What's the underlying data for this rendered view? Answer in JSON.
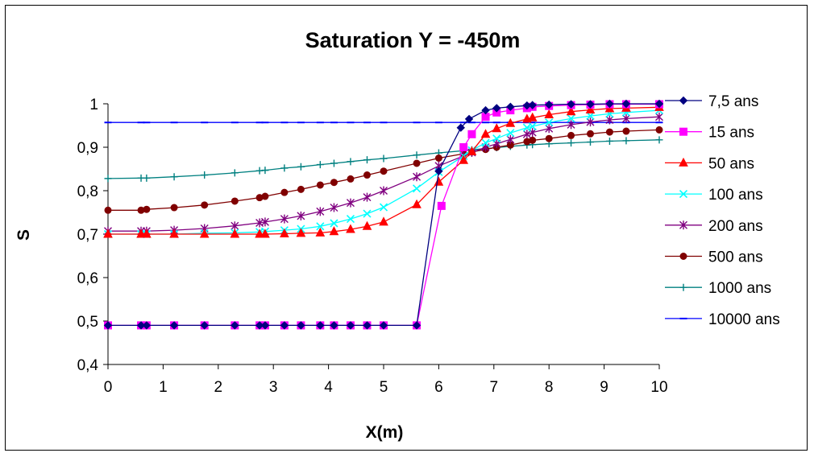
{
  "chart_data": {
    "type": "line",
    "title": "Saturation Y = -450m",
    "xlabel": "X(m)",
    "ylabel": "S",
    "xlim": [
      0,
      10
    ],
    "ylim": [
      0.4,
      1.0
    ],
    "x_ticks": [
      "0",
      "1",
      "2",
      "3",
      "4",
      "5",
      "6",
      "7",
      "8",
      "9",
      "10"
    ],
    "y_ticks": [
      "0,4",
      "0,5",
      "0,6",
      "0,7",
      "0,8",
      "0,9",
      "1"
    ],
    "grid": false,
    "legend_position": "right",
    "series": [
      {
        "name": "7,5 ans",
        "color": "#000080",
        "marker": "diamond",
        "x": [
          0,
          0.6,
          0.7,
          1.2,
          1.75,
          2.3,
          2.75,
          2.85,
          3.2,
          3.5,
          3.85,
          4.1,
          4.4,
          4.7,
          5.0,
          5.6,
          6.0,
          6.4,
          6.55,
          6.85,
          7.05,
          7.3,
          7.6,
          7.7,
          8.0,
          8.4,
          8.75,
          9.1,
          9.4,
          10.0
        ],
        "y": [
          0.49,
          0.49,
          0.49,
          0.49,
          0.49,
          0.49,
          0.49,
          0.49,
          0.49,
          0.49,
          0.49,
          0.49,
          0.49,
          0.49,
          0.49,
          0.49,
          0.845,
          0.945,
          0.965,
          0.985,
          0.99,
          0.993,
          0.996,
          0.997,
          0.998,
          0.999,
          0.999,
          1.0,
          1.0,
          1.0
        ]
      },
      {
        "name": "15 ans",
        "color": "#FF00FF",
        "marker": "square",
        "x": [
          0,
          0.6,
          0.7,
          1.2,
          1.75,
          2.3,
          2.75,
          2.85,
          3.2,
          3.5,
          3.85,
          4.1,
          4.4,
          4.7,
          5.0,
          5.6,
          6.05,
          6.45,
          6.6,
          6.85,
          7.05,
          7.3,
          7.6,
          7.7,
          8.0,
          8.4,
          8.75,
          9.1,
          9.4,
          10.0
        ],
        "y": [
          0.49,
          0.49,
          0.49,
          0.49,
          0.49,
          0.49,
          0.49,
          0.49,
          0.49,
          0.49,
          0.49,
          0.49,
          0.49,
          0.49,
          0.49,
          0.49,
          0.765,
          0.9,
          0.93,
          0.97,
          0.98,
          0.985,
          0.99,
          0.993,
          0.995,
          0.997,
          0.998,
          0.999,
          0.999,
          0.999
        ]
      },
      {
        "name": "50 ans",
        "color": "#FF0000",
        "marker": "triangle",
        "x": [
          0,
          0.6,
          0.7,
          1.2,
          1.75,
          2.3,
          2.75,
          2.85,
          3.2,
          3.5,
          3.85,
          4.1,
          4.4,
          4.7,
          5.0,
          5.6,
          6.0,
          6.45,
          6.6,
          6.85,
          7.05,
          7.3,
          7.6,
          7.7,
          8.0,
          8.4,
          8.75,
          9.1,
          9.4,
          10.0
        ],
        "y": [
          0.7,
          0.7,
          0.7,
          0.7,
          0.7,
          0.7,
          0.7,
          0.7,
          0.701,
          0.702,
          0.703,
          0.706,
          0.711,
          0.718,
          0.728,
          0.768,
          0.82,
          0.87,
          0.89,
          0.93,
          0.943,
          0.955,
          0.965,
          0.968,
          0.975,
          0.982,
          0.986,
          0.989,
          0.99,
          0.992
        ]
      },
      {
        "name": "100 ans",
        "color": "#00FFFF",
        "marker": "x",
        "x": [
          0,
          0.6,
          0.7,
          1.2,
          1.75,
          2.3,
          2.75,
          2.85,
          3.2,
          3.5,
          3.85,
          4.1,
          4.4,
          4.7,
          5.0,
          5.6,
          6.0,
          6.45,
          6.6,
          6.85,
          7.05,
          7.3,
          7.6,
          7.7,
          8.0,
          8.4,
          8.75,
          9.1,
          9.4,
          10.0
        ],
        "y": [
          0.7,
          0.7,
          0.7,
          0.7,
          0.702,
          0.703,
          0.705,
          0.706,
          0.709,
          0.712,
          0.718,
          0.725,
          0.735,
          0.747,
          0.762,
          0.805,
          0.843,
          0.88,
          0.893,
          0.91,
          0.92,
          0.933,
          0.945,
          0.948,
          0.957,
          0.966,
          0.972,
          0.977,
          0.98,
          0.985
        ]
      },
      {
        "name": "200 ans",
        "color": "#800080",
        "marker": "star",
        "x": [
          0,
          0.6,
          0.7,
          1.2,
          1.75,
          2.3,
          2.75,
          2.85,
          3.2,
          3.5,
          3.85,
          4.1,
          4.4,
          4.7,
          5.0,
          5.6,
          6.0,
          6.45,
          6.6,
          6.85,
          7.05,
          7.3,
          7.6,
          7.7,
          8.0,
          8.4,
          8.75,
          9.1,
          9.4,
          10.0
        ],
        "y": [
          0.707,
          0.707,
          0.707,
          0.709,
          0.713,
          0.719,
          0.726,
          0.728,
          0.735,
          0.742,
          0.752,
          0.761,
          0.772,
          0.785,
          0.8,
          0.832,
          0.857,
          0.88,
          0.888,
          0.9,
          0.908,
          0.918,
          0.93,
          0.934,
          0.943,
          0.952,
          0.958,
          0.963,
          0.966,
          0.97
        ]
      },
      {
        "name": "500 ans",
        "color": "#800000",
        "marker": "circle",
        "x": [
          0,
          0.6,
          0.7,
          1.2,
          1.75,
          2.3,
          2.75,
          2.85,
          3.2,
          3.5,
          3.85,
          4.1,
          4.4,
          4.7,
          5.0,
          5.6,
          6.0,
          6.45,
          6.6,
          6.85,
          7.05,
          7.3,
          7.6,
          7.7,
          8.0,
          8.4,
          8.75,
          9.1,
          9.4,
          10.0
        ],
        "y": [
          0.755,
          0.755,
          0.757,
          0.761,
          0.767,
          0.776,
          0.784,
          0.787,
          0.796,
          0.803,
          0.813,
          0.819,
          0.827,
          0.836,
          0.845,
          0.863,
          0.875,
          0.885,
          0.889,
          0.895,
          0.9,
          0.905,
          0.913,
          0.916,
          0.92,
          0.927,
          0.931,
          0.935,
          0.937,
          0.94
        ]
      },
      {
        "name": "1000 ans",
        "color": "#008080",
        "marker": "plus",
        "x": [
          0,
          0.6,
          0.7,
          1.2,
          1.75,
          2.3,
          2.75,
          2.85,
          3.2,
          3.5,
          3.85,
          4.1,
          4.4,
          4.7,
          5.0,
          5.6,
          6.0,
          6.45,
          6.6,
          6.85,
          7.05,
          7.3,
          7.6,
          7.7,
          8.0,
          8.4,
          8.75,
          9.1,
          9.4,
          10.0
        ],
        "y": [
          0.828,
          0.829,
          0.829,
          0.832,
          0.836,
          0.841,
          0.846,
          0.847,
          0.852,
          0.855,
          0.86,
          0.863,
          0.867,
          0.871,
          0.874,
          0.882,
          0.887,
          0.892,
          0.894,
          0.897,
          0.899,
          0.902,
          0.905,
          0.906,
          0.908,
          0.91,
          0.912,
          0.914,
          0.915,
          0.917
        ]
      },
      {
        "name": "10000 ans",
        "color": "#0000FF",
        "marker": "dash",
        "x": [
          0,
          0.6,
          0.7,
          1.2,
          1.75,
          2.3,
          2.75,
          2.85,
          3.2,
          3.5,
          3.85,
          4.1,
          4.4,
          4.7,
          5.0,
          5.6,
          6.0,
          6.45,
          6.6,
          6.85,
          7.05,
          7.3,
          7.6,
          7.7,
          8.0,
          8.4,
          8.75,
          9.1,
          9.4,
          10.0
        ],
        "y": [
          0.957,
          0.957,
          0.957,
          0.957,
          0.957,
          0.957,
          0.957,
          0.957,
          0.957,
          0.957,
          0.957,
          0.957,
          0.957,
          0.957,
          0.957,
          0.957,
          0.957,
          0.957,
          0.957,
          0.957,
          0.957,
          0.957,
          0.957,
          0.957,
          0.957,
          0.957,
          0.957,
          0.957,
          0.957,
          0.957
        ]
      }
    ]
  }
}
